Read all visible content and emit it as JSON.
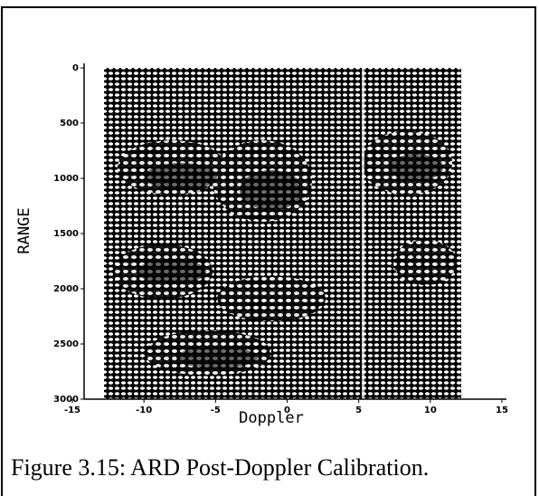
{
  "chart_data": {
    "type": "image",
    "xlabel": "Doppler",
    "ylabel": "RANGE",
    "xlim": [
      -15,
      15
    ],
    "ylim": [
      3000,
      0
    ],
    "xticks": [
      -15,
      -10,
      -5,
      0,
      5,
      10,
      15
    ],
    "yticks": [
      0,
      500,
      1000,
      1500,
      2000,
      2500,
      3000
    ]
  },
  "caption": "Figure 3.15: ARD Post-Doppler Calibration."
}
